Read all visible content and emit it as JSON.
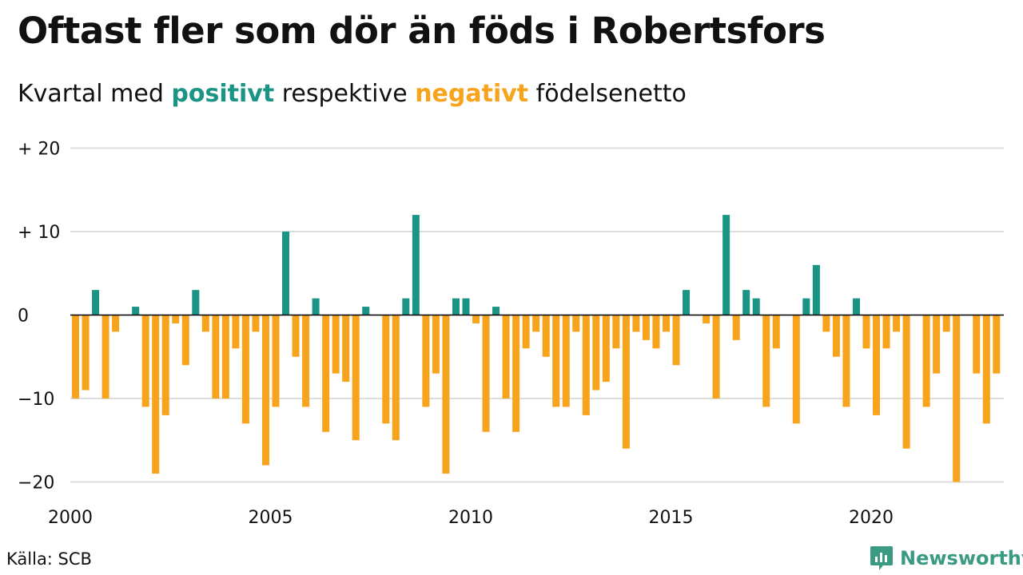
{
  "title": "Oftast fler som dör än föds i Robertsfors",
  "subtitle": {
    "before": "Kvartal med ",
    "positive_word": "positivt",
    "middle": " respektive ",
    "negative_word": "negativt",
    "after": " födelsenetto"
  },
  "source": "Källa: SCB",
  "brand": {
    "name": "Newsworthy",
    "icon": "newsworthy-logo-icon"
  },
  "colors": {
    "positive": "#1a9485",
    "negative": "#f7a31c",
    "grid": "#dddddd",
    "axis": "#000000"
  },
  "chart_data": {
    "type": "bar",
    "start": {
      "year": 2000,
      "quarter": 1
    },
    "ylim": [
      -22,
      20
    ],
    "yticks": [
      {
        "value": 20,
        "label": "+ 20"
      },
      {
        "value": 10,
        "label": "+ 10"
      },
      {
        "value": 0,
        "label": "0"
      },
      {
        "value": -10,
        "label": "−10"
      },
      {
        "value": -20,
        "label": "−20"
      }
    ],
    "xticks": [
      {
        "year": 2000,
        "label": "2000"
      },
      {
        "year": 2005,
        "label": "2005"
      },
      {
        "year": 2010,
        "label": "2010"
      },
      {
        "year": 2015,
        "label": "2015"
      },
      {
        "year": 2020,
        "label": "2020"
      }
    ],
    "values": [
      -10,
      -9,
      3,
      -10,
      -2,
      0,
      1,
      -11,
      -19,
      -12,
      -1,
      -6,
      3,
      -2,
      -10,
      -10,
      -4,
      -13,
      -2,
      -18,
      -11,
      10,
      -5,
      -11,
      2,
      -14,
      -7,
      -8,
      -15,
      1,
      0,
      -13,
      -15,
      2,
      12,
      -11,
      -7,
      -19,
      2,
      2,
      -1,
      -14,
      1,
      -10,
      -14,
      -4,
      -2,
      -5,
      -11,
      -11,
      -2,
      -12,
      -9,
      -8,
      -4,
      -16,
      -2,
      -3,
      -4,
      -2,
      -6,
      3,
      0,
      -1,
      -10,
      12,
      -3,
      3,
      2,
      -11,
      -4,
      0,
      -13,
      2,
      6,
      -2,
      -5,
      -11,
      2,
      -4,
      -12,
      -4,
      -2,
      -16,
      0,
      -11,
      -7,
      -2,
      -20,
      0,
      -7,
      -13,
      -7
    ]
  }
}
